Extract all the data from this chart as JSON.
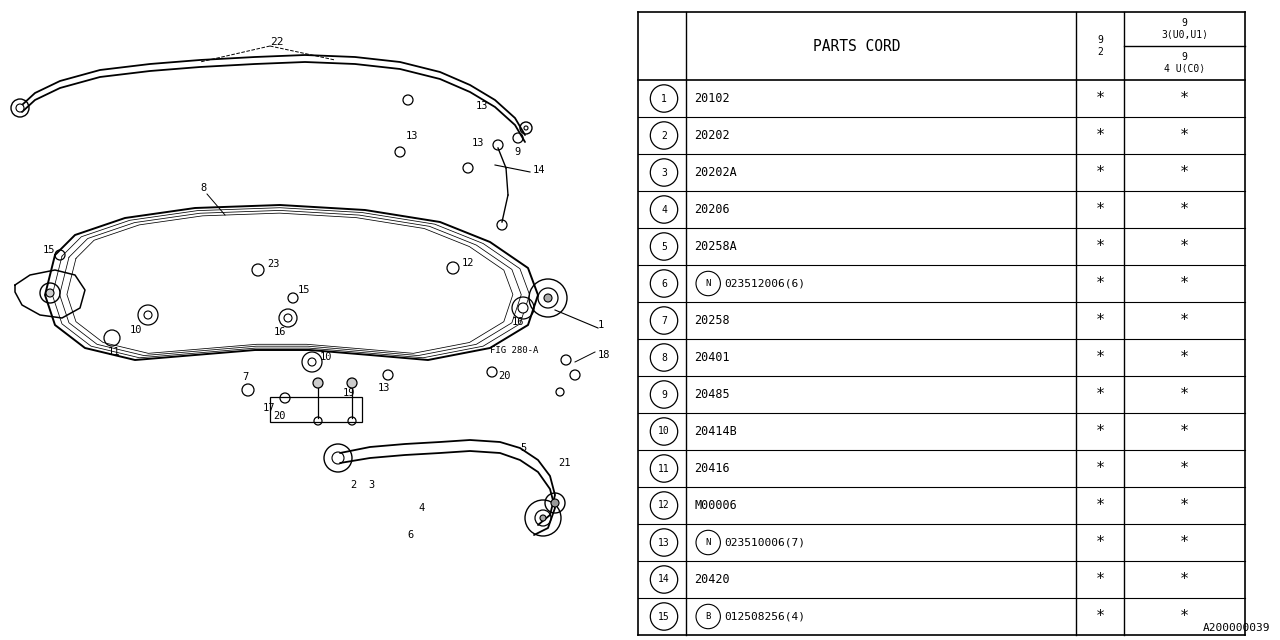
{
  "bg_color": "#ffffff",
  "rows": [
    {
      "num": "1",
      "code": "20102",
      "prefix": ""
    },
    {
      "num": "2",
      "code": "20202",
      "prefix": ""
    },
    {
      "num": "3",
      "code": "20202A",
      "prefix": ""
    },
    {
      "num": "4",
      "code": "20206",
      "prefix": ""
    },
    {
      "num": "5",
      "code": "20258A",
      "prefix": ""
    },
    {
      "num": "6",
      "code": "023512006(6)",
      "prefix": "N"
    },
    {
      "num": "7",
      "code": "20258",
      "prefix": ""
    },
    {
      "num": "8",
      "code": "20401",
      "prefix": ""
    },
    {
      "num": "9",
      "code": "20485",
      "prefix": ""
    },
    {
      "num": "10",
      "code": "20414B",
      "prefix": ""
    },
    {
      "num": "11",
      "code": "20416",
      "prefix": ""
    },
    {
      "num": "12",
      "code": "M00006",
      "prefix": ""
    },
    {
      "num": "13",
      "code": "023510006(7)",
      "prefix": "N"
    },
    {
      "num": "14",
      "code": "20420",
      "prefix": ""
    },
    {
      "num": "15",
      "code": "012508256(4)",
      "prefix": "B"
    }
  ],
  "diagram_id": "A200000039",
  "line_color": "#000000"
}
